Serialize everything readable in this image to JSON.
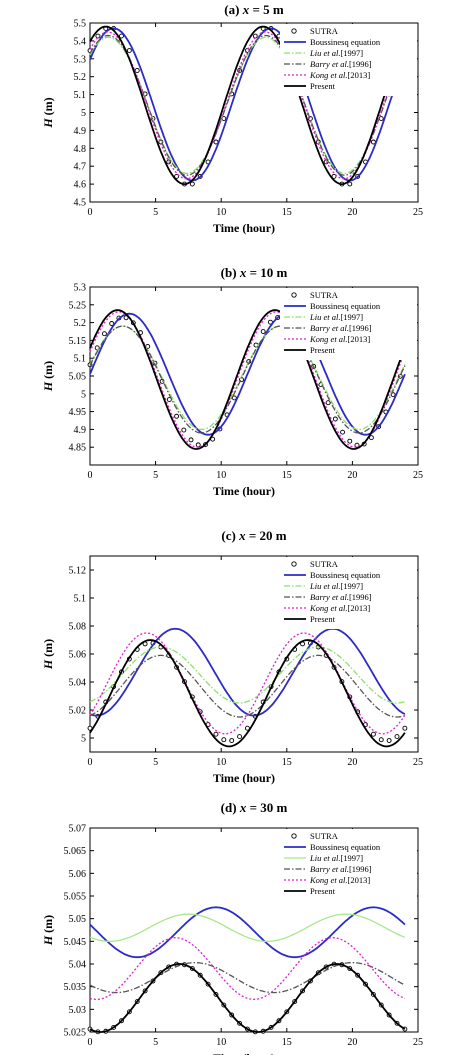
{
  "chart_data": [
    {
      "type": "line",
      "title": "(a) x = 5 m",
      "title_parts": [
        "(a) ",
        "x",
        " = 5 m"
      ],
      "xlabel": "Time (hour)",
      "ylabel": "H (m)",
      "ylabel_parts": [
        "H",
        " (m)"
      ],
      "xlim": [
        0,
        25
      ],
      "ylim": [
        4.5,
        5.5
      ],
      "xticks": [
        0,
        5,
        10,
        15,
        20,
        25
      ],
      "yticks": [
        4.5,
        4.6,
        4.7,
        4.8,
        4.9,
        5,
        5.1,
        5.2,
        5.3,
        5.4,
        5.5
      ],
      "ytick_labels": [
        "4.5",
        "4.6",
        "4.7",
        "4.8",
        "4.9",
        "5",
        "5.1",
        "5.2",
        "5.3",
        "5.4",
        "5.5"
      ],
      "legend_position": "top-right",
      "series": [
        {
          "name": "SUTRA",
          "name_parts": [
            "",
            "",
            "SUTRA"
          ],
          "style": "circles",
          "color": "#000000",
          "mean": 5.035,
          "amp": 0.44,
          "peak": 1.5,
          "period": 12,
          "dx": 0.6
        },
        {
          "name": "Boussinesq equation",
          "name_parts": [
            "",
            "",
            "Boussinesq equation"
          ],
          "style": "solid",
          "color": "#2b2bc6",
          "mean": 5.045,
          "amp": 0.425,
          "peak": 1.8,
          "period": 12
        },
        {
          "name": "Liu et al.[1997]",
          "name_parts": [
            "Liu ",
            "et al.",
            "[1997]"
          ],
          "style": "dashdot",
          "color": "#8ee06a",
          "mean": 5.04,
          "amp": 0.38,
          "peak": 1.4,
          "period": 12
        },
        {
          "name": "Barry et al.[1996]",
          "name_parts": [
            "Barry ",
            "et al.",
            "[1996]"
          ],
          "style": "dashdot",
          "color": "#555555",
          "mean": 5.04,
          "amp": 0.39,
          "peak": 1.4,
          "period": 12
        },
        {
          "name": "Kong et al.[2013]",
          "name_parts": [
            "Kong ",
            "et al.",
            "[2013]"
          ],
          "style": "dotted",
          "color": "#e020d0",
          "mean": 5.04,
          "amp": 0.41,
          "peak": 1.35,
          "period": 12
        },
        {
          "name": "Present",
          "name_parts": [
            "",
            "",
            "Present"
          ],
          "style": "solid",
          "color": "#000000",
          "mean": 5.04,
          "amp": 0.44,
          "peak": 1.2,
          "period": 12
        }
      ]
    },
    {
      "type": "line",
      "title": "(b) x = 10 m",
      "title_parts": [
        "(b) ",
        "x",
        " = 10 m"
      ],
      "xlabel": "Time (hour)",
      "ylabel": "H (m)",
      "ylabel_parts": [
        "H",
        " (m)"
      ],
      "xlim": [
        0,
        25
      ],
      "ylim": [
        4.8,
        5.3
      ],
      "xticks": [
        0,
        5,
        10,
        15,
        20,
        25
      ],
      "yticks": [
        4.85,
        4.9,
        4.95,
        5,
        5.05,
        5.1,
        5.15,
        5.2,
        5.25,
        5.3
      ],
      "ytick_labels": [
        "4.85",
        "4.9",
        "4.95",
        "5",
        "5.05",
        "5.1",
        "5.15",
        "5.2",
        "5.25",
        "5.3"
      ],
      "legend_position": "top-right",
      "series": [
        {
          "name": "SUTRA",
          "name_parts": [
            "",
            "",
            "SUTRA"
          ],
          "style": "circles",
          "color": "#000000",
          "mean": 5.035,
          "amp": 0.18,
          "peak": 2.5,
          "period": 12,
          "dx": 0.55
        },
        {
          "name": "Boussinesq equation",
          "name_parts": [
            "",
            "",
            "Boussinesq equation"
          ],
          "style": "solid",
          "color": "#2b2bc6",
          "mean": 5.055,
          "amp": 0.17,
          "peak": 3.0,
          "period": 12
        },
        {
          "name": "Liu et al.[1997]",
          "name_parts": [
            "Liu ",
            "et al.",
            "[1997]"
          ],
          "style": "dashdot",
          "color": "#8ee06a",
          "mean": 5.045,
          "amp": 0.145,
          "peak": 2.5,
          "period": 12
        },
        {
          "name": "Barry et al.[1996]",
          "name_parts": [
            "Barry ",
            "et al.",
            "[1996]"
          ],
          "style": "dashdot",
          "color": "#555555",
          "mean": 5.04,
          "amp": 0.15,
          "peak": 2.5,
          "period": 12
        },
        {
          "name": "Kong et al.[2013]",
          "name_parts": [
            "Kong ",
            "et al.",
            "[2013]"
          ],
          "style": "dotted",
          "color": "#e020d0",
          "mean": 5.04,
          "amp": 0.19,
          "peak": 2.2,
          "period": 12
        },
        {
          "name": "Present",
          "name_parts": [
            "",
            "",
            "Present"
          ],
          "style": "solid",
          "color": "#000000",
          "mean": 5.04,
          "amp": 0.195,
          "peak": 2.1,
          "period": 12
        }
      ]
    },
    {
      "type": "line",
      "title": "(c) x = 20 m",
      "title_parts": [
        "(c) ",
        "x",
        " = 20 m"
      ],
      "xlabel": "Time (hour)",
      "ylabel": "H (m)",
      "ylabel_parts": [
        "H",
        " (m)"
      ],
      "xlim": [
        0,
        25
      ],
      "ylim": [
        4.99,
        5.13
      ],
      "xticks": [
        0,
        5,
        10,
        15,
        20,
        25
      ],
      "yticks": [
        5,
        5.02,
        5.04,
        5.06,
        5.08,
        5.1,
        5.12
      ],
      "ytick_labels": [
        "5",
        "5.02",
        "5.04",
        "5.06",
        "5.08",
        "5.1",
        "5.12"
      ],
      "legend_position": "top-right",
      "series": [
        {
          "name": "SUTRA",
          "name_parts": [
            "",
            "",
            "SUTRA"
          ],
          "style": "circles",
          "color": "#000000",
          "mean": 5.033,
          "amp": 0.035,
          "peak": 4.6,
          "period": 12,
          "dx": 0.6
        },
        {
          "name": "Boussinesq equation",
          "name_parts": [
            "",
            "",
            "Boussinesq equation"
          ],
          "style": "solid",
          "color": "#2b2bc6",
          "mean": 5.047,
          "amp": 0.031,
          "peak": 6.5,
          "period": 12
        },
        {
          "name": "Liu et al.[1997]",
          "name_parts": [
            "Liu ",
            "et al.",
            "[1997]"
          ],
          "style": "dashdot",
          "color": "#8ee06a",
          "mean": 5.045,
          "amp": 0.02,
          "peak": 5.4,
          "period": 12
        },
        {
          "name": "Barry et al.[1996]",
          "name_parts": [
            "Barry ",
            "et al.",
            "[1996]"
          ],
          "style": "dashdot",
          "color": "#555555",
          "mean": 5.037,
          "amp": 0.022,
          "peak": 5.4,
          "period": 12
        },
        {
          "name": "Kong et al.[2013]",
          "name_parts": [
            "Kong ",
            "et al.",
            "[2013]"
          ],
          "style": "dotted",
          "color": "#e020d0",
          "mean": 5.039,
          "amp": 0.036,
          "peak": 4.3,
          "period": 12
        },
        {
          "name": "Present",
          "name_parts": [
            "",
            "",
            "Present"
          ],
          "style": "solid",
          "color": "#000000",
          "mean": 5.032,
          "amp": 0.038,
          "peak": 4.6,
          "period": 12
        }
      ]
    },
    {
      "type": "line",
      "title": "(d) x = 30 m",
      "title_parts": [
        "(d) ",
        "x",
        " = 30 m"
      ],
      "xlabel": "Time (hour)",
      "ylabel": "H (m)",
      "ylabel_parts": [
        "H",
        " (m)"
      ],
      "xlim": [
        0,
        25
      ],
      "ylim": [
        5.025,
        5.07
      ],
      "xticks": [
        0,
        5,
        10,
        15,
        20,
        25
      ],
      "yticks": [
        5.025,
        5.03,
        5.035,
        5.04,
        5.045,
        5.05,
        5.055,
        5.06,
        5.065,
        5.07
      ],
      "ytick_labels": [
        "5.025",
        "5.03",
        "5.035",
        "5.04",
        "5.045",
        "5.05",
        "5.055",
        "5.06",
        "5.065",
        "5.07"
      ],
      "legend_position": "top-right",
      "series": [
        {
          "name": "SUTRA",
          "name_parts": [
            "",
            "",
            "SUTRA"
          ],
          "style": "circles",
          "color": "#000000",
          "mean": 5.0325,
          "amp": 0.0075,
          "peak": 6.8,
          "period": 12,
          "dx": 0.6
        },
        {
          "name": "Boussinesq equation",
          "name_parts": [
            "",
            "",
            "Boussinesq equation"
          ],
          "style": "solid",
          "color": "#2b2bc6",
          "mean": 5.047,
          "amp": 0.0055,
          "peak": 9.6,
          "period": 12
        },
        {
          "name": "Liu et al.[1997]",
          "name_parts": [
            "Liu ",
            "et al.",
            "[1997]"
          ],
          "style": "solid",
          "color": "#a6e88c",
          "mean": 5.048,
          "amp": 0.003,
          "peak": 7.5,
          "period": 12
        },
        {
          "name": "Barry et al.[1996]",
          "name_parts": [
            "Barry ",
            "et al.",
            "[1996]"
          ],
          "style": "dashdot",
          "color": "#555555",
          "mean": 5.037,
          "amp": 0.0033,
          "peak": 8.0,
          "period": 12
        },
        {
          "name": "Kong et al.[2013]",
          "name_parts": [
            "Kong ",
            "et al.",
            "[2013]"
          ],
          "style": "dotted",
          "color": "#e020d0",
          "mean": 5.039,
          "amp": 0.0068,
          "peak": 6.5,
          "period": 12
        },
        {
          "name": "Present",
          "name_parts": [
            "",
            "",
            "Present"
          ],
          "style": "solid",
          "color": "#000000",
          "mean": 5.0325,
          "amp": 0.0075,
          "peak": 6.8,
          "period": 12
        }
      ]
    }
  ]
}
